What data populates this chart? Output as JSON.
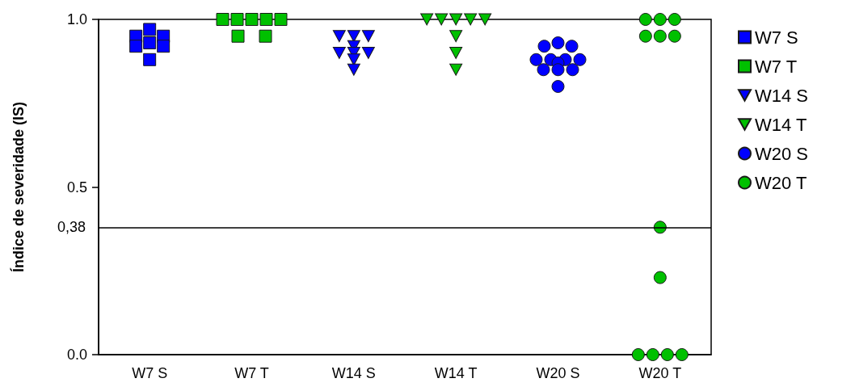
{
  "chart_data": {
    "type": "scatter",
    "ylabel": "Índice de severidade (IS)",
    "categories": [
      "W7 S",
      "W7 T",
      "W14 S",
      "W14 T",
      "W20 S",
      "W20 T"
    ],
    "series": [
      {
        "name": "W7 S",
        "color": "#0000ff",
        "marker": "square",
        "x": [
          "W7 S",
          "W7 S",
          "W7 S",
          "W7 S",
          "W7 S",
          "W7 S",
          "W7 S"
        ],
        "values": [
          0.97,
          0.95,
          0.95,
          0.93,
          0.92,
          0.92,
          0.88
        ]
      },
      {
        "name": "W7 T",
        "color": "#00c000",
        "marker": "square",
        "x": [
          "W7 T",
          "W7 T",
          "W7 T",
          "W7 T",
          "W7 T",
          "W7 T",
          "W7 T"
        ],
        "values": [
          1.0,
          1.0,
          1.0,
          1.0,
          1.0,
          0.95,
          0.95
        ]
      },
      {
        "name": "W14 S",
        "color": "#0000ff",
        "marker": "triangle",
        "x": [
          "W14 S",
          "W14 S",
          "W14 S",
          "W14 S",
          "W14 S",
          "W14 S",
          "W14 S",
          "W14 S",
          "W14 S"
        ],
        "values": [
          0.95,
          0.95,
          0.95,
          0.92,
          0.9,
          0.9,
          0.9,
          0.88,
          0.85
        ]
      },
      {
        "name": "W14 T",
        "color": "#00c000",
        "marker": "triangle",
        "x": [
          "W14 T",
          "W14 T",
          "W14 T",
          "W14 T",
          "W14 T",
          "W14 T",
          "W14 T",
          "W14 T"
        ],
        "values": [
          1.0,
          1.0,
          1.0,
          1.0,
          1.0,
          0.95,
          0.9,
          0.85
        ]
      },
      {
        "name": "W20 S",
        "color": "#0000ff",
        "marker": "circle",
        "x": [
          "W20 S",
          "W20 S",
          "W20 S",
          "W20 S",
          "W20 S",
          "W20 S",
          "W20 S",
          "W20 S",
          "W20 S",
          "W20 S",
          "W20 S",
          "W20 S"
        ],
        "values": [
          0.93,
          0.92,
          0.92,
          0.88,
          0.88,
          0.88,
          0.88,
          0.87,
          0.85,
          0.85,
          0.85,
          0.8
        ]
      },
      {
        "name": "W20 T",
        "color": "#00c000",
        "marker": "circle",
        "x": [
          "W20 T",
          "W20 T",
          "W20 T",
          "W20 T",
          "W20 T",
          "W20 T",
          "W20 T",
          "W20 T",
          "W20 T",
          "W20 T",
          "W20 T",
          "W20 T"
        ],
        "values": [
          1.0,
          1.0,
          1.0,
          0.95,
          0.95,
          0.95,
          0.38,
          0.23,
          0.0,
          0.0,
          0.0,
          0.0
        ]
      }
    ],
    "ylim": [
      0,
      1
    ],
    "yticks": [
      {
        "value": 0,
        "label": "0.0"
      },
      {
        "value": 0.5,
        "label": "0.5"
      },
      {
        "value": 1,
        "label": "1.0"
      }
    ],
    "ref_lines": [
      {
        "axis": "y",
        "value": 0.38,
        "label": "0,38",
        "color": "#000000"
      }
    ],
    "grid": false,
    "legend": "right"
  }
}
